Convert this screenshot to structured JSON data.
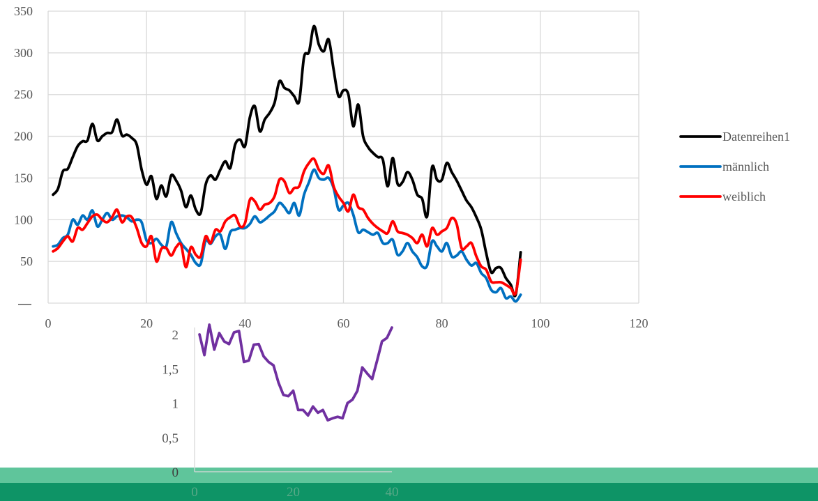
{
  "chart_data": [
    {
      "type": "line",
      "title": "",
      "xlabel": "",
      "ylabel": "",
      "xlim": [
        0,
        120
      ],
      "ylim": [
        0,
        350
      ],
      "x_ticks": [
        0,
        20,
        40,
        60,
        80,
        100,
        120
      ],
      "y_ticks": [
        50,
        100,
        150,
        200,
        250,
        300,
        350
      ],
      "grid": true,
      "legend": "right",
      "series": [
        {
          "name": "Datenreihen1",
          "color": "#000000",
          "x": [
            1,
            2,
            3,
            4,
            5,
            6,
            7,
            8,
            9,
            10,
            11,
            12,
            13,
            14,
            15,
            16,
            17,
            18,
            19,
            20,
            21,
            22,
            23,
            24,
            25,
            26,
            27,
            28,
            29,
            30,
            31,
            32,
            33,
            34,
            35,
            36,
            37,
            38,
            39,
            40,
            41,
            42,
            43,
            44,
            45,
            46,
            47,
            48,
            49,
            50,
            51,
            52,
            53,
            54,
            55,
            56,
            57,
            58,
            59,
            60,
            61,
            62,
            63,
            64,
            65,
            66,
            67,
            68,
            69,
            70,
            71,
            72,
            73,
            74,
            75,
            76,
            77,
            78,
            79,
            80,
            81,
            82,
            83,
            84,
            85,
            86,
            87,
            88,
            89,
            90,
            91,
            92,
            93,
            94,
            95,
            96
          ],
          "y": [
            130,
            137,
            158,
            161,
            175,
            188,
            194,
            195,
            215,
            195,
            200,
            204,
            205,
            220,
            201,
            202,
            198,
            190,
            160,
            142,
            152,
            125,
            141,
            128,
            153,
            147,
            135,
            115,
            129,
            112,
            108,
            142,
            153,
            148,
            160,
            170,
            162,
            190,
            196,
            188,
            223,
            236,
            206,
            220,
            228,
            240,
            266,
            258,
            255,
            248,
            242,
            295,
            301,
            332,
            310,
            302,
            316,
            280,
            248,
            255,
            250,
            212,
            238,
            200,
            187,
            180,
            175,
            172,
            140,
            174,
            143,
            145,
            157,
            148,
            130,
            125,
            104,
            163,
            148,
            148,
            168,
            157,
            147,
            135,
            123,
            115,
            103,
            88,
            60,
            37,
            42,
            42,
            30,
            22,
            10,
            61
          ]
        },
        {
          "name": "männlich",
          "color": "#0070c0",
          "x": [
            1,
            2,
            3,
            4,
            5,
            6,
            7,
            8,
            9,
            10,
            11,
            12,
            13,
            14,
            15,
            16,
            17,
            18,
            19,
            20,
            21,
            22,
            23,
            24,
            25,
            26,
            27,
            28,
            29,
            30,
            31,
            32,
            33,
            34,
            35,
            36,
            37,
            38,
            39,
            40,
            41,
            42,
            43,
            44,
            45,
            46,
            47,
            48,
            49,
            50,
            51,
            52,
            53,
            54,
            55,
            56,
            57,
            58,
            59,
            60,
            61,
            62,
            63,
            64,
            65,
            66,
            67,
            68,
            69,
            70,
            71,
            72,
            73,
            74,
            75,
            76,
            77,
            78,
            79,
            80,
            81,
            82,
            83,
            84,
            85,
            86,
            87,
            88,
            89,
            90,
            91,
            92,
            93,
            94,
            95,
            96
          ],
          "y": [
            68,
            70,
            78,
            82,
            100,
            94,
            105,
            100,
            111,
            92,
            100,
            108,
            100,
            104,
            105,
            103,
            98,
            100,
            97,
            75,
            72,
            77,
            70,
            68,
            97,
            84,
            72,
            65,
            58,
            48,
            47,
            75,
            71,
            80,
            82,
            65,
            85,
            88,
            90,
            90,
            95,
            104,
            97,
            100,
            105,
            110,
            120,
            115,
            108,
            120,
            105,
            130,
            145,
            160,
            150,
            148,
            150,
            138,
            112,
            117,
            120,
            106,
            85,
            88,
            85,
            82,
            84,
            72,
            72,
            76,
            58,
            62,
            72,
            62,
            55,
            44,
            45,
            74,
            68,
            62,
            72,
            56,
            57,
            62,
            52,
            45,
            48,
            36,
            30,
            16,
            13,
            18,
            6,
            8,
            2,
            10
          ]
        },
        {
          "name": "weiblich",
          "color": "#ff0000",
          "x": [
            1,
            2,
            3,
            4,
            5,
            6,
            7,
            8,
            9,
            10,
            11,
            12,
            13,
            14,
            15,
            16,
            17,
            18,
            19,
            20,
            21,
            22,
            23,
            24,
            25,
            26,
            27,
            28,
            29,
            30,
            31,
            32,
            33,
            34,
            35,
            36,
            37,
            38,
            39,
            40,
            41,
            42,
            43,
            44,
            45,
            46,
            47,
            48,
            49,
            50,
            51,
            52,
            53,
            54,
            55,
            56,
            57,
            58,
            59,
            60,
            61,
            62,
            63,
            64,
            65,
            66,
            67,
            68,
            69,
            70,
            71,
            72,
            73,
            74,
            75,
            76,
            77,
            78,
            79,
            80,
            81,
            82,
            83,
            84,
            85,
            86,
            87,
            88,
            89,
            90,
            91,
            92,
            93,
            94,
            95,
            96
          ],
          "y": [
            62,
            66,
            74,
            80,
            74,
            90,
            88,
            96,
            104,
            106,
            100,
            97,
            103,
            112,
            97,
            104,
            103,
            90,
            72,
            68,
            80,
            50,
            65,
            66,
            57,
            67,
            70,
            43,
            67,
            58,
            56,
            80,
            72,
            88,
            86,
            98,
            103,
            105,
            92,
            96,
            124,
            122,
            112,
            118,
            120,
            128,
            148,
            146,
            132,
            138,
            140,
            158,
            168,
            173,
            160,
            155,
            165,
            140,
            128,
            120,
            110,
            130,
            115,
            112,
            102,
            95,
            90,
            86,
            84,
            98,
            86,
            84,
            82,
            78,
            72,
            82,
            68,
            90,
            82,
            86,
            90,
            102,
            95,
            66,
            68,
            72,
            56,
            44,
            40,
            26,
            25,
            25,
            22,
            18,
            12,
            52
          ]
        }
      ]
    },
    {
      "type": "line",
      "title": "",
      "xlabel": "",
      "ylabel": "",
      "xlim": [
        0,
        40
      ],
      "ylim": [
        0,
        2
      ],
      "x_ticks": [
        "0",
        "20",
        "40"
      ],
      "y_ticks": [
        "0",
        "0,5",
        "1",
        "1,5",
        "2"
      ],
      "grid": false,
      "legend": "none",
      "series": [
        {
          "color": "#7030a0",
          "x": [
            1,
            2,
            3,
            4,
            5,
            6,
            7,
            8,
            9,
            10,
            11,
            12,
            13,
            14,
            15,
            16,
            17,
            18,
            19,
            20,
            21,
            22,
            23,
            24,
            25,
            26,
            27,
            28,
            29,
            30,
            31,
            32,
            33,
            34,
            35,
            36,
            37,
            38,
            39,
            40
          ],
          "y": [
            2.0,
            1.7,
            2.2,
            1.78,
            2.02,
            1.9,
            1.86,
            2.03,
            2.05,
            1.6,
            1.62,
            1.85,
            1.86,
            1.68,
            1.6,
            1.55,
            1.3,
            1.12,
            1.1,
            1.18,
            0.9,
            0.9,
            0.82,
            0.95,
            0.86,
            0.9,
            0.75,
            0.78,
            0.8,
            0.78,
            1.0,
            1.05,
            1.18,
            1.52,
            1.43,
            1.35,
            1.62,
            1.9,
            1.95,
            2.1
          ]
        }
      ]
    }
  ]
}
